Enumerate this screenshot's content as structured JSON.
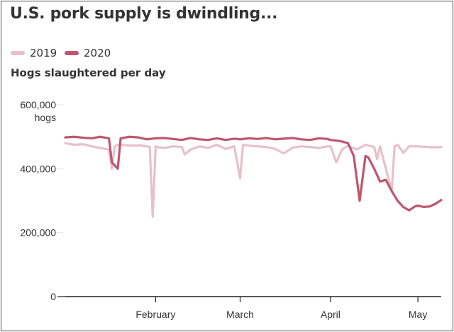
{
  "title": "U.S. pork supply is dwindling...",
  "subtitle": "Hogs slaughtered per day",
  "colors": {
    "2019": "#e8c1c8",
    "2020": "#bf5670",
    "axis": "#222222",
    "text": "#333333"
  },
  "chart_data": {
    "type": "line",
    "title": "U.S. pork supply is dwindling...",
    "subtitle": "Hogs slaughtered per day",
    "ylabel": "",
    "xlabel": "",
    "y_unit_label": "hogs",
    "ylim": [
      0,
      600000
    ],
    "y_ticks": [
      {
        "value": 0,
        "label": "0"
      },
      {
        "value": 200000,
        "label": "200,000"
      },
      {
        "value": 400000,
        "label": "400,000"
      },
      {
        "value": 600000,
        "label": "600,000"
      }
    ],
    "xlim": [
      "01-01",
      "05-09"
    ],
    "x_ticks": [
      {
        "value": "02-01",
        "label": "February"
      },
      {
        "value": "03-01",
        "label": "March"
      },
      {
        "value": "04-01",
        "label": "April"
      },
      {
        "value": "05-01",
        "label": "May"
      }
    ],
    "legend_position": "top-left",
    "grid": false,
    "series": [
      {
        "name": "2019",
        "color": "#e8c1c8",
        "x": [
          "01-01",
          "01-04",
          "01-07",
          "01-10",
          "01-13",
          "01-16",
          "01-17",
          "01-18",
          "01-19",
          "01-21",
          "01-24",
          "01-27",
          "01-30",
          "01-31",
          "02-01",
          "02-02",
          "02-04",
          "02-07",
          "02-10",
          "02-11",
          "02-13",
          "02-16",
          "02-19",
          "02-22",
          "02-25",
          "02-28",
          "03-01",
          "03-02",
          "03-04",
          "03-07",
          "03-10",
          "03-13",
          "03-16",
          "03-19",
          "03-22",
          "03-25",
          "03-28",
          "03-31",
          "04-01",
          "04-03",
          "04-05",
          "04-07",
          "04-10",
          "04-13",
          "04-16",
          "04-17",
          "04-18",
          "04-20",
          "04-22",
          "04-23",
          "04-24",
          "04-26",
          "04-28",
          "05-01",
          "05-04",
          "05-07",
          "05-09"
        ],
        "values": [
          480000,
          475000,
          477000,
          470000,
          465000,
          460000,
          400000,
          470000,
          475000,
          474000,
          472000,
          473000,
          468000,
          250000,
          470000,
          467000,
          465000,
          470000,
          468000,
          445000,
          460000,
          470000,
          465000,
          475000,
          462000,
          470000,
          370000,
          475000,
          472000,
          470000,
          468000,
          462000,
          448000,
          466000,
          470000,
          468000,
          465000,
          470000,
          470000,
          420000,
          460000,
          472000,
          460000,
          475000,
          468000,
          430000,
          470000,
          400000,
          332000,
          470000,
          475000,
          450000,
          470000,
          470000,
          468000,
          467000,
          468000
        ]
      },
      {
        "name": "2020",
        "color": "#bf5670",
        "x": [
          "01-01",
          "01-04",
          "01-07",
          "01-10",
          "01-13",
          "01-16",
          "01-17",
          "01-19",
          "01-20",
          "01-23",
          "01-26",
          "01-29",
          "02-01",
          "02-04",
          "02-07",
          "02-10",
          "02-13",
          "02-16",
          "02-19",
          "02-22",
          "02-25",
          "02-28",
          "03-01",
          "03-04",
          "03-07",
          "03-10",
          "03-13",
          "03-16",
          "03-19",
          "03-22",
          "03-25",
          "03-28",
          "03-31",
          "04-01",
          "04-03",
          "04-05",
          "04-07",
          "04-09",
          "04-11",
          "04-13",
          "04-14",
          "04-16",
          "04-18",
          "04-20",
          "04-22",
          "04-24",
          "04-26",
          "04-28",
          "04-30",
          "05-01",
          "05-03",
          "05-05",
          "05-07",
          "05-09"
        ],
        "values": [
          498000,
          500000,
          497000,
          495000,
          500000,
          495000,
          420000,
          400000,
          495000,
          500000,
          498000,
          492000,
          495000,
          496000,
          493000,
          490000,
          496000,
          492000,
          490000,
          495000,
          490000,
          494000,
          492000,
          495000,
          493000,
          496000,
          492000,
          494000,
          496000,
          492000,
          490000,
          495000,
          493000,
          490000,
          488000,
          485000,
          480000,
          440000,
          300000,
          440000,
          435000,
          400000,
          360000,
          365000,
          330000,
          300000,
          280000,
          270000,
          282000,
          285000,
          280000,
          282000,
          290000,
          302000
        ]
      }
    ]
  }
}
